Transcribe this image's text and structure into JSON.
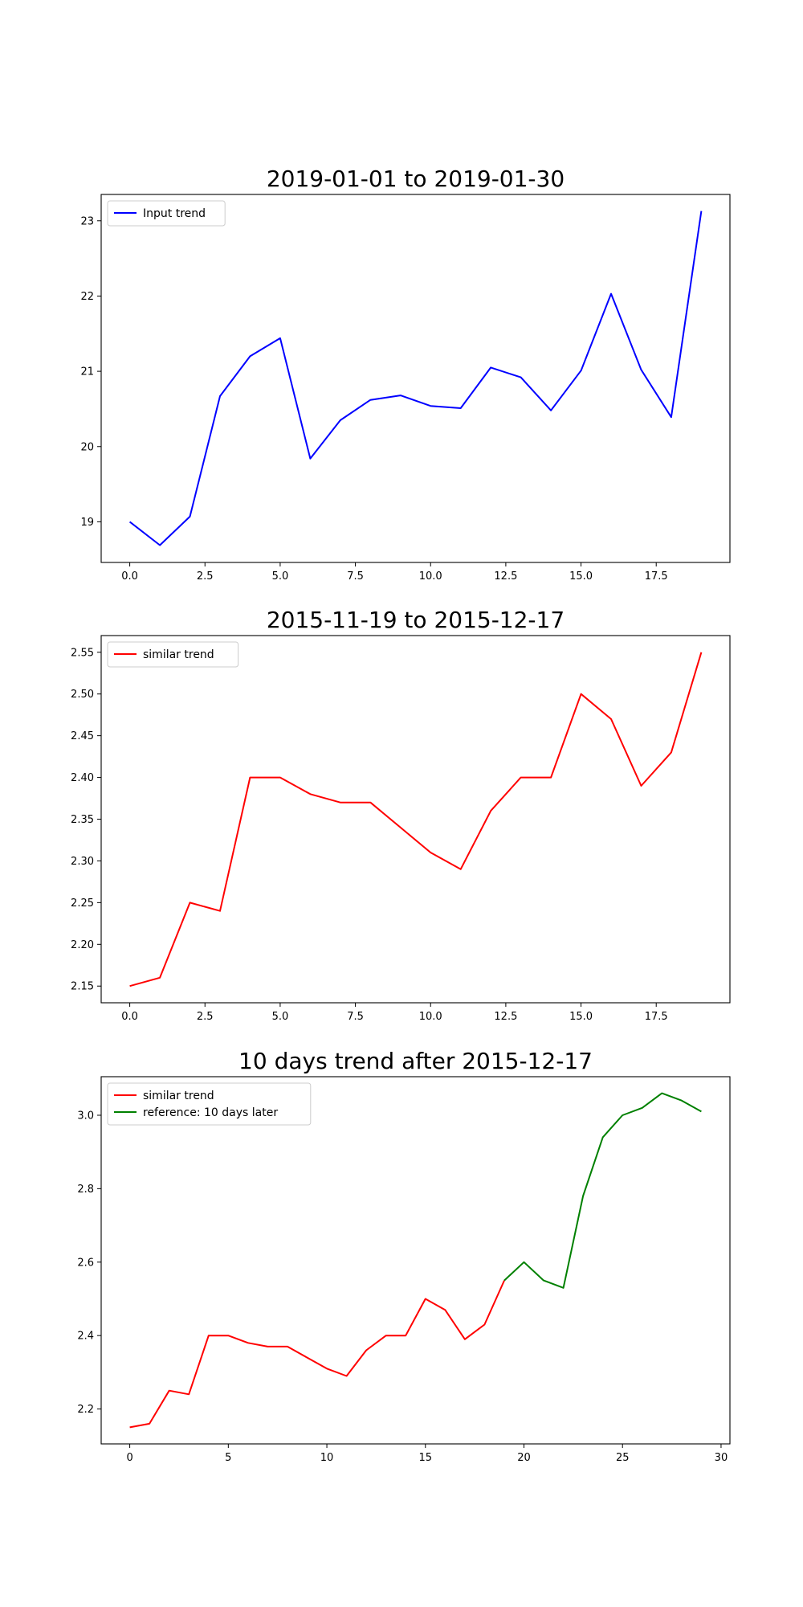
{
  "chart_data": [
    {
      "type": "line",
      "title": "2019-01-01 to 2019-01-30",
      "xlabel": "",
      "ylabel": "",
      "xlim": [
        -0.95,
        19.95
      ],
      "ylim": [
        18.46,
        23.35
      ],
      "xticks": [
        0,
        2.5,
        5,
        7.5,
        10,
        12.5,
        15,
        17.5
      ],
      "xtick_labels": [
        "0.0",
        "2.5",
        "5.0",
        "7.5",
        "10.0",
        "12.5",
        "15.0",
        "17.5"
      ],
      "yticks": [
        19,
        20,
        21,
        22,
        23
      ],
      "ytick_labels": [
        "19",
        "20",
        "21",
        "22",
        "23"
      ],
      "grid": false,
      "legend": "upper-left",
      "series": [
        {
          "name": "Input trend",
          "color": "#0000ff",
          "x": [
            0,
            1,
            2,
            3,
            4,
            5,
            6,
            7,
            8,
            9,
            10,
            11,
            12,
            13,
            14,
            15,
            16,
            17,
            18,
            19
          ],
          "y": [
            19.0,
            18.69,
            19.07,
            20.67,
            21.2,
            21.44,
            19.84,
            20.35,
            20.62,
            20.68,
            20.54,
            20.51,
            21.05,
            20.92,
            20.48,
            21.01,
            22.03,
            21.02,
            20.39,
            23.13
          ]
        }
      ]
    },
    {
      "type": "line",
      "title": "2015-11-19 to 2015-12-17",
      "xlabel": "",
      "ylabel": "",
      "xlim": [
        -0.95,
        19.95
      ],
      "ylim": [
        2.13,
        2.57
      ],
      "xticks": [
        0,
        2.5,
        5,
        7.5,
        10,
        12.5,
        15,
        17.5
      ],
      "xtick_labels": [
        "0.0",
        "2.5",
        "5.0",
        "7.5",
        "10.0",
        "12.5",
        "15.0",
        "17.5"
      ],
      "yticks": [
        2.15,
        2.2,
        2.25,
        2.3,
        2.35,
        2.4,
        2.45,
        2.5,
        2.55
      ],
      "ytick_labels": [
        "2.15",
        "2.20",
        "2.25",
        "2.30",
        "2.35",
        "2.40",
        "2.45",
        "2.50",
        "2.55"
      ],
      "grid": false,
      "legend": "upper-left",
      "series": [
        {
          "name": "similar trend",
          "color": "#ff0000",
          "x": [
            0,
            1,
            2,
            3,
            4,
            5,
            6,
            7,
            8,
            9,
            10,
            11,
            12,
            13,
            14,
            15,
            16,
            17,
            18,
            19
          ],
          "y": [
            2.15,
            2.16,
            2.25,
            2.24,
            2.4,
            2.4,
            2.38,
            2.37,
            2.37,
            2.34,
            2.31,
            2.29,
            2.36,
            2.4,
            2.4,
            2.5,
            2.47,
            2.39,
            2.43,
            2.55
          ]
        }
      ]
    },
    {
      "type": "line",
      "title": "10 days trend after 2015-12-17",
      "xlabel": "",
      "ylabel": "",
      "xlim": [
        -1.45,
        30.45
      ],
      "ylim": [
        2.105,
        3.105
      ],
      "xticks": [
        0,
        5,
        10,
        15,
        20,
        25,
        30
      ],
      "xtick_labels": [
        "0",
        "5",
        "10",
        "15",
        "20",
        "25",
        "30"
      ],
      "yticks": [
        2.2,
        2.4,
        2.6,
        2.8,
        3.0
      ],
      "ytick_labels": [
        "2.2",
        "2.4",
        "2.6",
        "2.8",
        "3.0"
      ],
      "grid": false,
      "legend": "upper-left",
      "series": [
        {
          "name": "similar trend",
          "color": "#ff0000",
          "x": [
            0,
            1,
            2,
            3,
            4,
            5,
            6,
            7,
            8,
            9,
            10,
            11,
            12,
            13,
            14,
            15,
            16,
            17,
            18,
            19
          ],
          "y": [
            2.15,
            2.16,
            2.25,
            2.24,
            2.4,
            2.4,
            2.38,
            2.37,
            2.37,
            2.34,
            2.31,
            2.29,
            2.36,
            2.4,
            2.4,
            2.5,
            2.47,
            2.39,
            2.43,
            2.55
          ]
        },
        {
          "name": "reference: 10 days later",
          "color": "#008000",
          "x": [
            19,
            20,
            21,
            22,
            23,
            24,
            25,
            26,
            27,
            28,
            29
          ],
          "y": [
            2.55,
            2.6,
            2.55,
            2.53,
            2.78,
            2.94,
            3.0,
            3.02,
            3.06,
            3.04,
            3.01
          ]
        }
      ]
    }
  ]
}
